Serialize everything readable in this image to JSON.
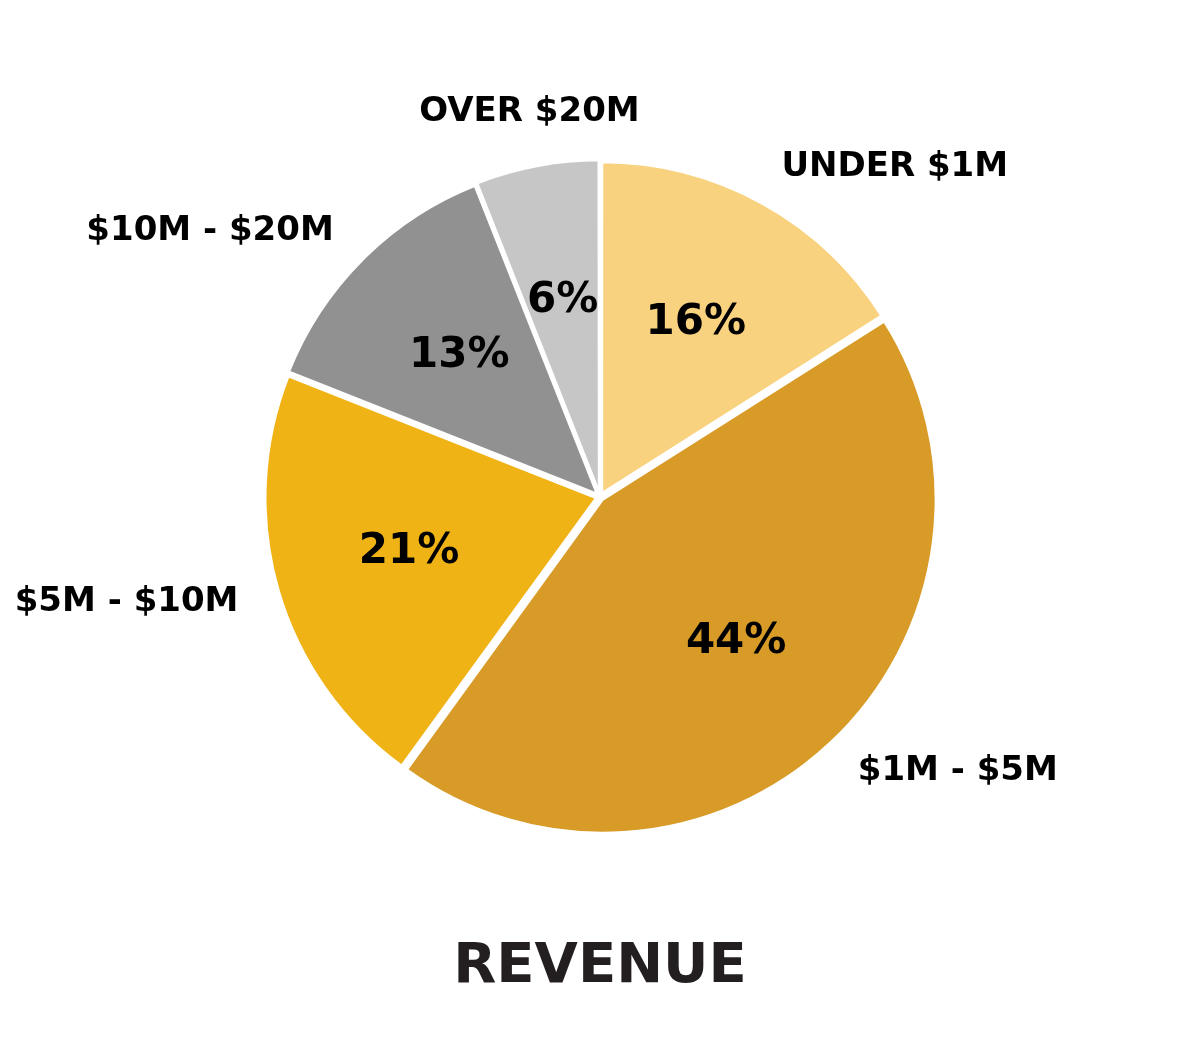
{
  "chart_data": {
    "type": "pie",
    "title": "REVENUE",
    "categories": [
      "UNDER $1M",
      "$1M - $5M",
      "$5M - $10M",
      "$10M - $20M",
      "OVER $20M"
    ],
    "values": [
      16,
      44,
      21,
      13,
      6
    ],
    "colors": [
      "#f9d27f",
      "#d89b27",
      "#f0b316",
      "#919191",
      "#c6c6c6"
    ],
    "value_labels": [
      "16%",
      "44%",
      "21%",
      "13%",
      "6%"
    ]
  }
}
